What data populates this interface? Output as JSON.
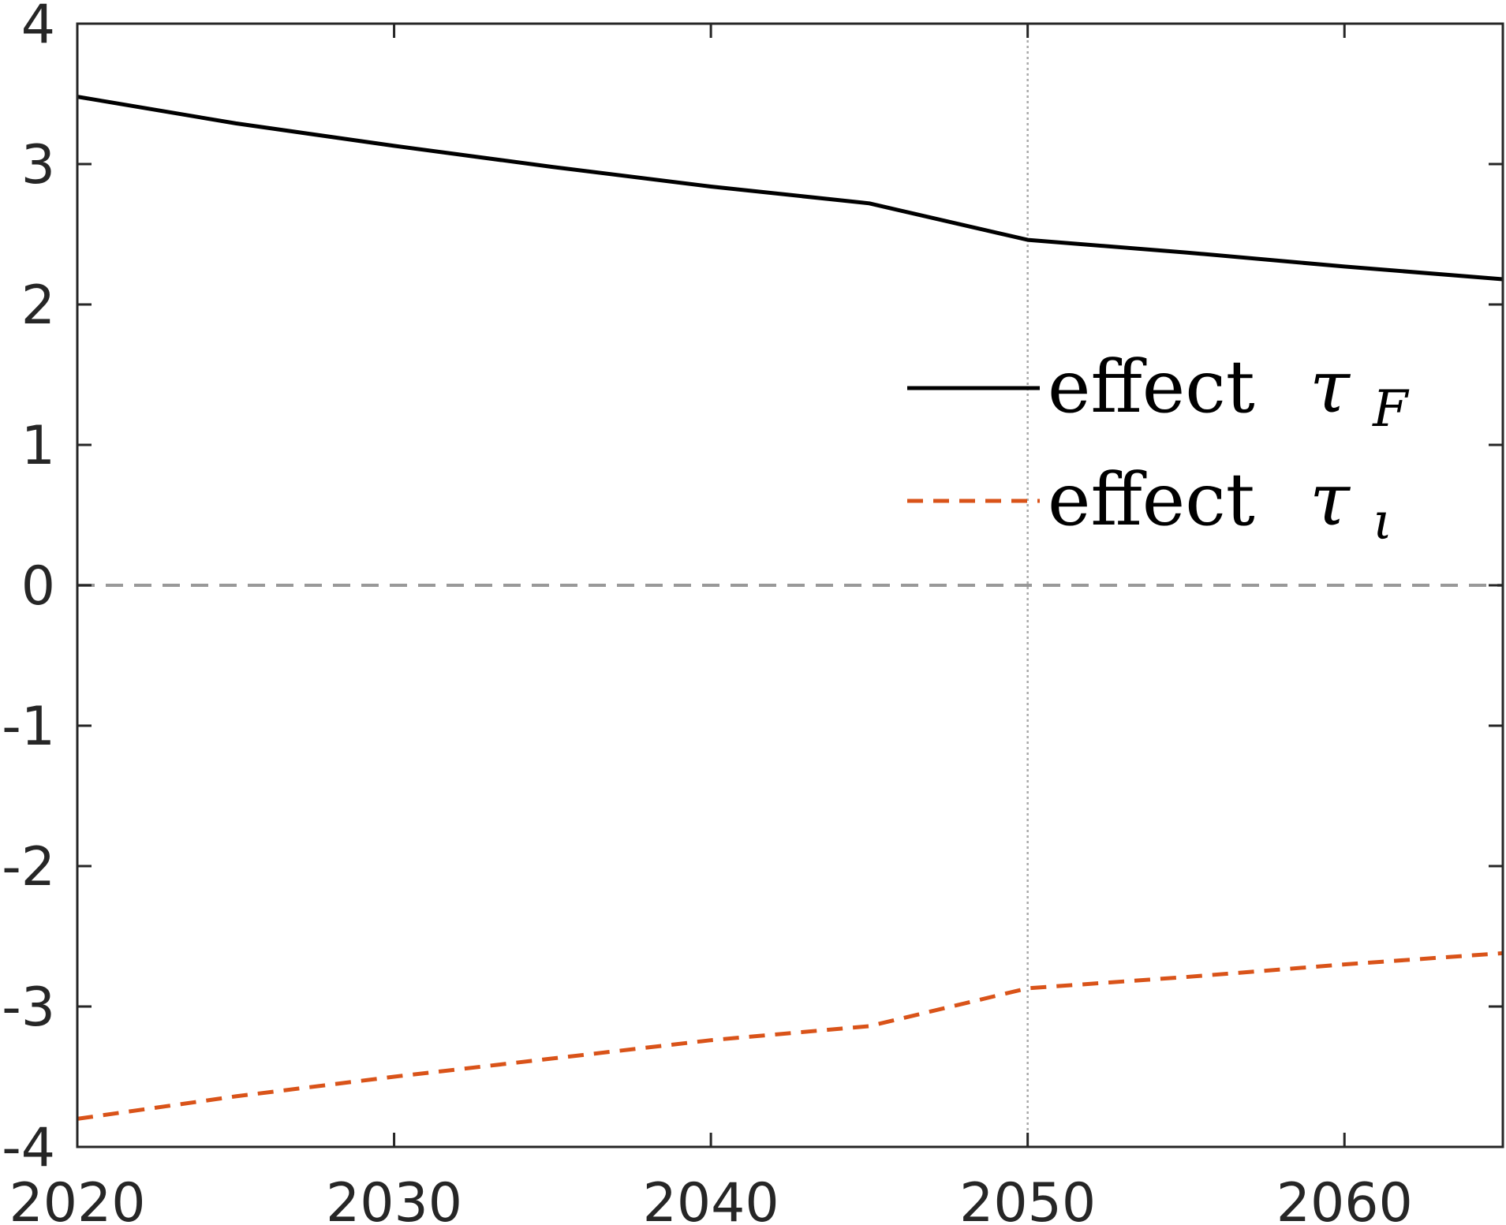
{
  "chart_data": {
    "type": "line",
    "x_range": [
      2020,
      2065
    ],
    "ylim": [
      -4,
      4
    ],
    "x_ticks": [
      2020,
      2030,
      2040,
      2050,
      2060
    ],
    "y_ticks": [
      -4,
      -3,
      -2,
      -1,
      0,
      1,
      2,
      3,
      4
    ],
    "x_tick_labels": [
      "2020",
      "2030",
      "2040",
      "2050",
      "2060"
    ],
    "y_tick_labels": [
      "-4",
      "-3",
      "-2",
      "-1",
      "0",
      "1",
      "2",
      "3",
      "4"
    ],
    "grid": false,
    "legend_position": "center-right",
    "reference_lines": [
      {
        "type": "horizontal",
        "value": 0,
        "style": "dashed",
        "color": "#999999"
      },
      {
        "type": "vertical",
        "value": 2050,
        "style": "dotted",
        "color": "#aaaaaa"
      }
    ],
    "series": [
      {
        "name": "effect τF",
        "legend_word": "effect",
        "legend_symbol": "τ",
        "legend_subscript": "F",
        "style": "solid",
        "color": "#000000",
        "x": [
          2020,
          2025,
          2030,
          2035,
          2040,
          2045,
          2050,
          2055,
          2060,
          2065
        ],
        "y": [
          3.48,
          3.29,
          3.13,
          2.98,
          2.84,
          2.72,
          2.46,
          2.37,
          2.27,
          2.18
        ]
      },
      {
        "name": "effect τι",
        "legend_word": "effect",
        "legend_symbol": "τ",
        "legend_subscript": "ι",
        "style": "dashed",
        "color": "#d95319",
        "x": [
          2020,
          2025,
          2030,
          2035,
          2040,
          2045,
          2050,
          2055,
          2060,
          2065
        ],
        "y": [
          -3.8,
          -3.64,
          -3.5,
          -3.37,
          -3.24,
          -3.14,
          -2.87,
          -2.79,
          -2.7,
          -2.62
        ]
      }
    ]
  }
}
